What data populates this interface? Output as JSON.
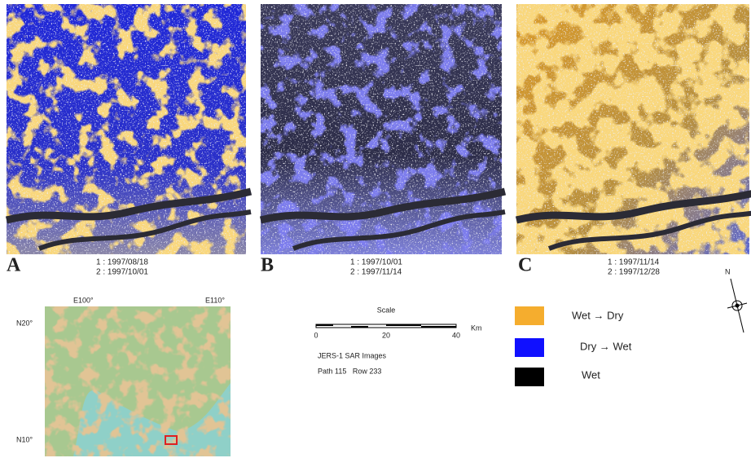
{
  "panels": [
    {
      "label": "A",
      "date1": "1 : 1997/08/18",
      "date2": "2 : 1997/10/01"
    },
    {
      "label": "B",
      "date1": "1 : 1997/10/01",
      "date2": "2 : 1997/11/14"
    },
    {
      "label": "C",
      "date1": "1 : 1997/11/14",
      "date2": "2 : 1997/12/28"
    }
  ],
  "location_map": {
    "lon_labels": [
      "E100°",
      "E110°"
    ],
    "lat_labels": [
      "N20°",
      "N10°"
    ]
  },
  "scale": {
    "title": "Scale",
    "ticks": [
      "0",
      "20",
      "40"
    ],
    "unit": "Km"
  },
  "sensor": {
    "line1": "JERS-1 SAR Images",
    "line2": "Path 115   Row 233"
  },
  "legend": [
    {
      "label": "Wet → Dry"
    },
    {
      "label": "Dry → Wet"
    },
    {
      "label": "Wet"
    }
  ],
  "compass": {
    "label": "N"
  }
}
